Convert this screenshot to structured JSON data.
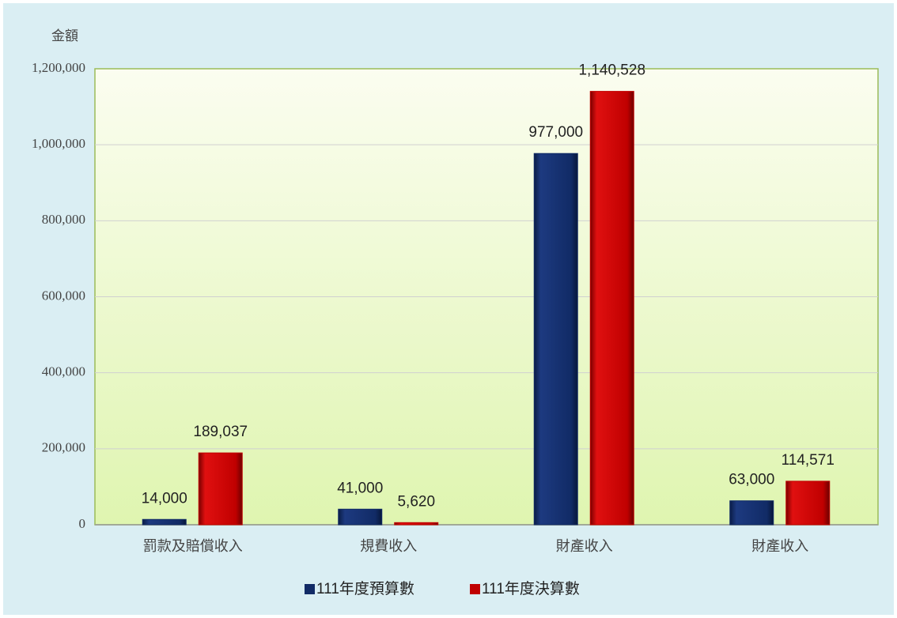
{
  "chart_data": {
    "type": "bar",
    "y_label": "金額",
    "categories": [
      "罰款及賠償收入",
      "規費收入",
      "財產收入",
      "財產收入"
    ],
    "series": [
      {
        "name": "111年度預算數",
        "color": "#112b66",
        "values": [
          14000,
          41000,
          977000,
          63000
        ],
        "value_labels": [
          "14,000",
          "41,000",
          "977,000",
          "63,000"
        ]
      },
      {
        "name": "111年度決算數",
        "color": "#c00000",
        "values": [
          189037,
          5620,
          1140528,
          114571
        ],
        "value_labels": [
          "189,037",
          "5,620",
          "1,140,528",
          "114,571"
        ]
      }
    ],
    "ylim": [
      0,
      1200000
    ],
    "yticks": [
      {
        "value": 0,
        "label": "0"
      },
      {
        "value": 200000,
        "label": "200,000"
      },
      {
        "value": 400000,
        "label": "400,000"
      },
      {
        "value": 600000,
        "label": "600,000"
      },
      {
        "value": 800000,
        "label": "800,000"
      },
      {
        "value": 1000000,
        "label": "1,000,000"
      },
      {
        "value": 1200000,
        "label": "1,200,000"
      }
    ],
    "grid": true,
    "legend": "bottom"
  }
}
